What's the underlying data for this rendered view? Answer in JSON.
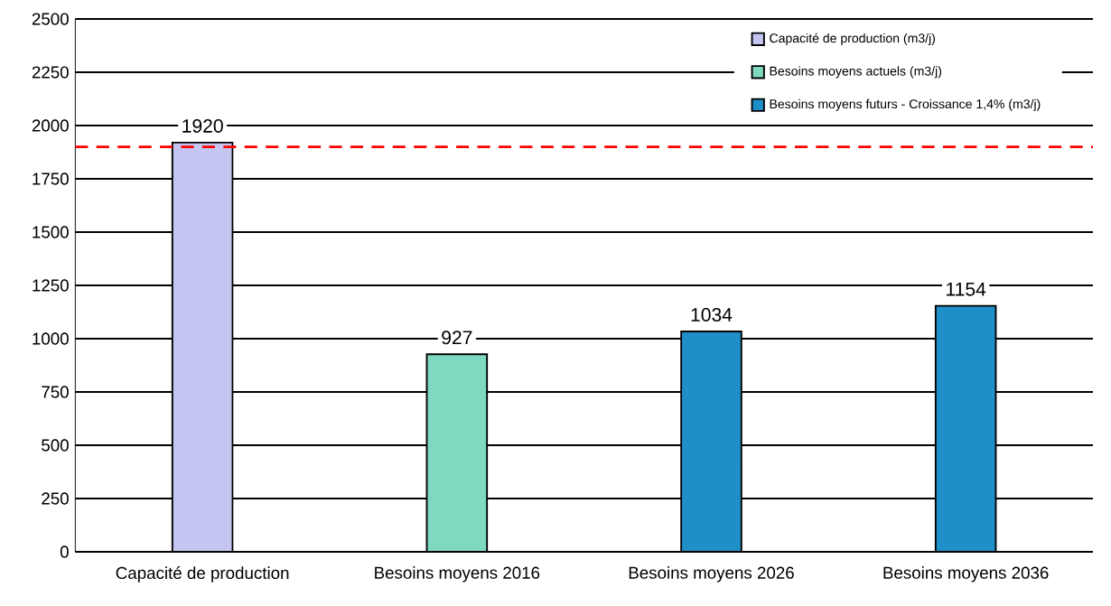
{
  "chart_data": {
    "type": "bar",
    "categories": [
      "Capacité de production",
      "Besoins moyens 2016",
      "Besoins moyens 2026",
      "Besoins moyens 2036"
    ],
    "series": [
      {
        "name": "Capacité de production (m3/j)",
        "color": "#c5c5f2",
        "values": [
          1920,
          null,
          null,
          null
        ]
      },
      {
        "name": "Besoins moyens actuels (m3/j)",
        "color": "#7fd8c0",
        "values": [
          null,
          927,
          null,
          null
        ]
      },
      {
        "name": "Besoins moyens futurs - Croissance 1,4% (m3/j)",
        "color": "#1f8fc8",
        "values": [
          null,
          null,
          1034,
          1154
        ]
      }
    ],
    "ylim": [
      0,
      2500
    ],
    "yticks": [
      0,
      250,
      500,
      750,
      1000,
      1250,
      1500,
      1750,
      2000,
      2250,
      2500
    ],
    "grid": "y",
    "legend": "top right",
    "data_labels": true,
    "ref_lines": [
      {
        "axis": "y",
        "value": 1900,
        "color": "#ff0000",
        "line_style": "dashed"
      }
    ]
  }
}
